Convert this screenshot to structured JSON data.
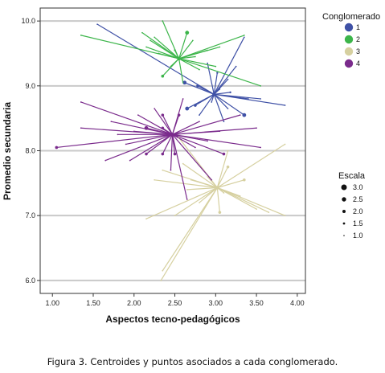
{
  "caption": "Figura 3. Centroides y puntos asociados a cada conglomerado.",
  "chart_data": {
    "type": "scatter",
    "xlabel": "Aspectos tecno-pedagógicos",
    "ylabel": "Promedio secundaria",
    "xlim": [
      0.85,
      4.1
    ],
    "ylim": [
      5.8,
      10.2
    ],
    "xticks": [
      "1.00",
      "1.50",
      "2.00",
      "2.50",
      "3.00",
      "3.50",
      "4.00"
    ],
    "yticks": [
      "6.0",
      "7.0",
      "8.0",
      "9.0",
      "10.0"
    ],
    "grid": "horizontal",
    "legend_color": {
      "title": "Conglomerado",
      "entries": [
        {
          "label": "1",
          "color": "#3f51a6"
        },
        {
          "label": "2",
          "color": "#3cb54a"
        },
        {
          "label": "3",
          "color": "#d6d0a0"
        },
        {
          "label": "4",
          "color": "#7a2b8c"
        }
      ]
    },
    "legend_size": {
      "title": "Escala",
      "entries": [
        "3.0",
        "2.5",
        "2.0",
        "1.5",
        "1.0"
      ]
    },
    "series": [
      {
        "name": "1",
        "color": "#3f51a6",
        "centroid": [
          2.98,
          8.87
        ],
        "points": [
          [
            1.55,
            9.95,
            1.2
          ],
          [
            2.62,
            9.05,
            2.5
          ],
          [
            2.78,
            9.0,
            2.0
          ],
          [
            3.02,
            9.2,
            1.5
          ],
          [
            3.18,
            8.9,
            1.5
          ],
          [
            3.35,
            8.55,
            2.5
          ],
          [
            3.05,
            8.95,
            1.2
          ],
          [
            3.4,
            8.8,
            1.2
          ],
          [
            3.85,
            8.7,
            1.2
          ],
          [
            3.35,
            9.75,
            1.2
          ],
          [
            2.9,
            9.35,
            1.2
          ],
          [
            2.8,
            8.55,
            1.2
          ],
          [
            3.15,
            8.65,
            1.2
          ],
          [
            3.55,
            8.8,
            1.2
          ],
          [
            2.75,
            8.7,
            2.0
          ],
          [
            3.15,
            9.1,
            1.2
          ],
          [
            2.65,
            8.65,
            2.5
          ],
          [
            3.25,
            9.3,
            1.2
          ],
          [
            3.1,
            8.45,
            1.2
          ],
          [
            2.95,
            8.75,
            1.2
          ]
        ]
      },
      {
        "name": "2",
        "color": "#3cb54a",
        "centroid": [
          2.55,
          9.42
        ],
        "points": [
          [
            1.35,
            9.78,
            1.2
          ],
          [
            2.1,
            9.82,
            1.2
          ],
          [
            2.2,
            9.7,
            1.2
          ],
          [
            2.35,
            9.15,
            2.0
          ],
          [
            2.65,
            9.82,
            2.5
          ],
          [
            3.35,
            9.78,
            1.2
          ],
          [
            3.55,
            9.0,
            1.2
          ],
          [
            2.72,
            9.7,
            1.2
          ],
          [
            2.8,
            9.25,
            1.2
          ],
          [
            2.9,
            9.55,
            1.2
          ],
          [
            2.3,
            9.5,
            1.2
          ],
          [
            2.5,
            9.55,
            1.5
          ],
          [
            2.6,
            9.05,
            1.2
          ],
          [
            2.45,
            9.3,
            1.2
          ],
          [
            2.35,
            10.0,
            1.2
          ],
          [
            3.05,
            9.6,
            1.2
          ],
          [
            2.25,
            9.75,
            1.2
          ],
          [
            2.75,
            9.45,
            1.2
          ],
          [
            3.0,
            9.3,
            1.2
          ],
          [
            2.15,
            9.6,
            1.2
          ]
        ]
      },
      {
        "name": "3",
        "color": "#d6d0a0",
        "centroid": [
          3.02,
          7.43
        ],
        "points": [
          [
            2.35,
            6.15,
            1.2
          ],
          [
            2.33,
            6.0,
            1.2
          ],
          [
            2.15,
            6.95,
            1.2
          ],
          [
            2.25,
            7.55,
            1.2
          ],
          [
            2.35,
            7.7,
            1.2
          ],
          [
            2.65,
            7.4,
            1.2
          ],
          [
            2.8,
            7.2,
            1.2
          ],
          [
            3.15,
            7.75,
            2.0
          ],
          [
            3.35,
            7.55,
            2.0
          ],
          [
            3.05,
            7.05,
            2.0
          ],
          [
            3.5,
            7.1,
            1.2
          ],
          [
            3.65,
            7.05,
            1.2
          ],
          [
            3.85,
            7.0,
            1.2
          ],
          [
            3.85,
            8.1,
            1.2
          ],
          [
            2.6,
            7.8,
            1.2
          ],
          [
            3.3,
            7.3,
            1.2
          ],
          [
            2.9,
            7.6,
            1.2
          ],
          [
            3.15,
            8.0,
            1.2
          ],
          [
            2.55,
            8.2,
            1.2
          ],
          [
            2.7,
            7.55,
            1.2
          ],
          [
            3.1,
            7.35,
            1.2
          ],
          [
            2.5,
            7.0,
            1.2
          ]
        ]
      },
      {
        "name": "4",
        "color": "#7a2b8c",
        "centroid": [
          2.47,
          8.25
        ],
        "points": [
          [
            1.05,
            8.05,
            2.0
          ],
          [
            1.35,
            8.75,
            1.2
          ],
          [
            1.35,
            8.35,
            1.2
          ],
          [
            1.65,
            7.85,
            1.2
          ],
          [
            1.72,
            8.45,
            1.2
          ],
          [
            2.05,
            8.55,
            1.2
          ],
          [
            2.15,
            8.35,
            2.5
          ],
          [
            2.15,
            7.95,
            2.0
          ],
          [
            2.35,
            8.55,
            2.0
          ],
          [
            2.35,
            8.35,
            2.0
          ],
          [
            2.35,
            7.95,
            2.0
          ],
          [
            2.5,
            7.95,
            2.0
          ],
          [
            2.55,
            8.55,
            2.0
          ],
          [
            2.75,
            8.05,
            1.2
          ],
          [
            2.95,
            7.55,
            1.2
          ],
          [
            3.1,
            7.95,
            2.0
          ],
          [
            3.5,
            8.35,
            1.2
          ],
          [
            3.55,
            8.05,
            1.2
          ],
          [
            3.3,
            8.55,
            1.2
          ],
          [
            2.9,
            8.15,
            1.2
          ],
          [
            2.45,
            7.7,
            1.2
          ],
          [
            2.65,
            7.25,
            1.2
          ],
          [
            1.9,
            8.1,
            1.2
          ],
          [
            2.25,
            8.65,
            1.2
          ],
          [
            2.8,
            8.45,
            1.2
          ],
          [
            1.8,
            8.25,
            1.2
          ],
          [
            2.6,
            8.8,
            1.2
          ],
          [
            2.0,
            8.3,
            1.2
          ],
          [
            3.05,
            8.3,
            1.2
          ],
          [
            1.95,
            7.85,
            1.2
          ]
        ]
      }
    ]
  }
}
